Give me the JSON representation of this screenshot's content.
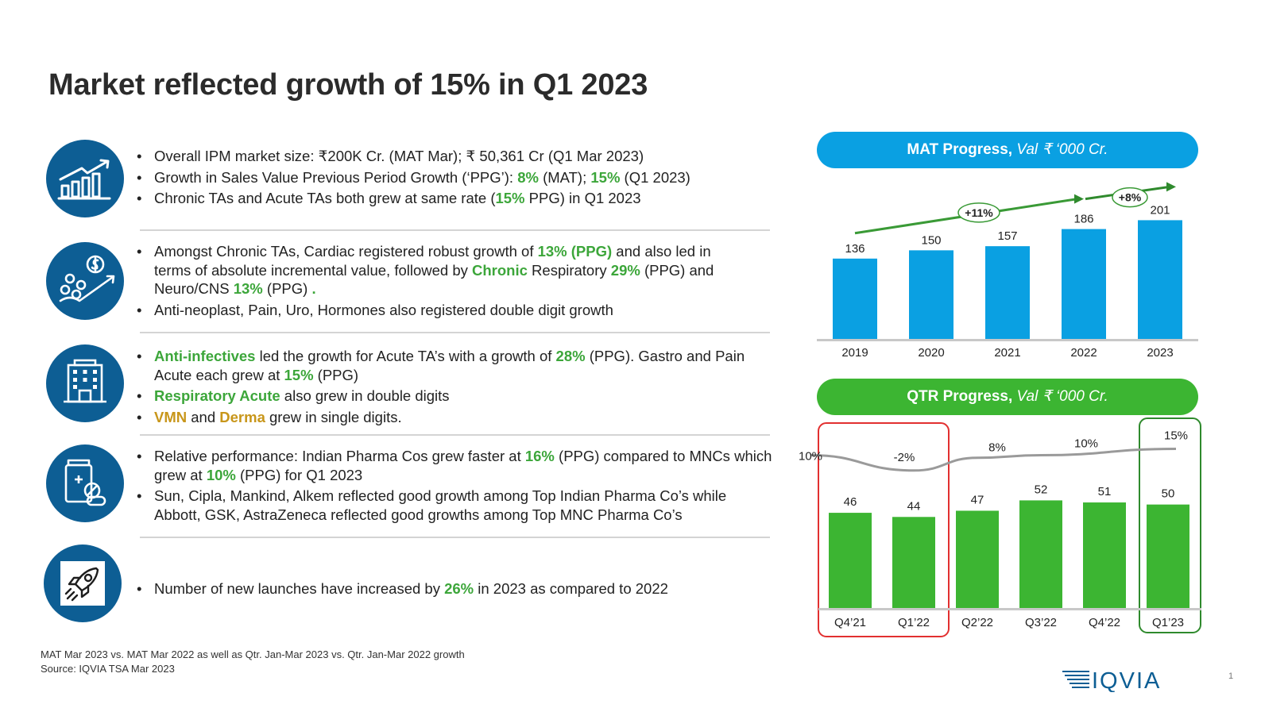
{
  "title": "Market reflected growth of 15% in Q1 2023",
  "sections": [
    {
      "icon": "growth-chart-icon",
      "bullets": [
        [
          {
            "t": "Overall IPM market size: ₹"
          },
          {
            "t": "200K  Cr. ",
            "s": "b"
          },
          {
            "t": "(MAT Mar)",
            "s": "i"
          },
          {
            "t": "; ",
            "s": "b"
          },
          {
            "t": "₹ "
          },
          {
            "t": "50,361 Cr ",
            "s": "b"
          },
          {
            "t": "("
          },
          {
            "t": "Q1 Mar 2023)",
            "s": "i"
          }
        ],
        [
          {
            "t": "Growth in Sales Value Previous Period Growth (‘PPG’): "
          },
          {
            "t": "8%",
            "s": "g"
          },
          {
            "t": " (MAT)",
            "s": "i"
          },
          {
            "t": "; ",
            "s": "b"
          },
          {
            "t": "15%",
            "s": "g"
          },
          {
            "t": " (Q1 2023)",
            "s": "i"
          }
        ],
        [
          {
            "t": "Chronic TAs and Acute TAs both grew at same rate ("
          },
          {
            "t": "15%",
            "s": "g"
          },
          {
            "t": " PPG) in Q1 2023"
          }
        ]
      ]
    },
    {
      "icon": "people-growth-icon",
      "bullets": [
        [
          {
            "t": "Amongst "
          },
          {
            "t": "Chronic TAs, Cardiac",
            "s": "b"
          },
          {
            "t": " registered robust growth of "
          },
          {
            "t": "13% (PPG)",
            "s": "g"
          },
          {
            "t": " and also led in terms of absolute incremental value, followed by "
          },
          {
            "t": "Chronic ",
            "s": "g"
          },
          {
            "t": "Respiratory",
            "s": "b"
          },
          {
            "t": " 29%",
            "s": "g"
          },
          {
            "t": " (PPG) and "
          },
          {
            "t": "Neuro/CNS",
            "s": "b"
          },
          {
            "t": " 13%",
            "s": "g"
          },
          {
            "t": " (PPG) "
          },
          {
            "t": ".",
            "s": "g"
          }
        ],
        [
          {
            "t": "Anti-neoplast, Pain, Uro, Hormones",
            "s": "b"
          },
          {
            "t": " also registered double digit growth"
          }
        ]
      ]
    },
    {
      "icon": "building-icon",
      "bullets": [
        [
          {
            "t": "Anti-infectives",
            "s": "g"
          },
          {
            "t": " led the growth for Acute TA’s with a growth of "
          },
          {
            "t": "28%",
            "s": "g"
          },
          {
            "t": " (PPG).  "
          },
          {
            "t": "Gastro",
            "s": "b"
          },
          {
            "t": " and "
          },
          {
            "t": "Pain Acute",
            "s": "b"
          },
          {
            "t": " each grew at "
          },
          {
            "t": "15%",
            "s": "g"
          },
          {
            "t": " (PPG)"
          }
        ],
        [
          {
            "t": "Respiratory Acute",
            "s": "g"
          },
          {
            "t": " also grew in double digits"
          }
        ],
        [
          {
            "t": "VMN",
            "s": "o"
          },
          {
            "t": " and "
          },
          {
            "t": "Derma",
            "s": "o"
          },
          {
            "t": " grew in single digits."
          }
        ]
      ]
    },
    {
      "icon": "pharma-pills-icon",
      "bullets": [
        [
          {
            "t": "Relative performance: "
          },
          {
            "t": "Indian Pharma",
            "s": "b"
          },
          {
            "t": " Cos grew faster at "
          },
          {
            "t": "16%",
            "s": "g"
          },
          {
            "t": " (PPG) compared to "
          },
          {
            "t": "MNCs",
            "s": "b"
          },
          {
            "t": " which grew at "
          },
          {
            "t": "10%",
            "s": "g"
          },
          {
            "t": " (PPG) for "
          },
          {
            "t": "Q1 2023",
            "s": "b"
          }
        ],
        [
          {
            "t": "Sun, Cipla, Mankind, Alkem reflected good growth among Top Indian Pharma Co’s while Abbott, GSK, AstraZeneca reflected good growths among Top MNC Pharma Co’s"
          }
        ]
      ]
    },
    {
      "icon": "rocket-icon",
      "bullets": [
        [
          {
            "t": "Number of "
          },
          {
            "t": "new launches",
            "s": "b"
          },
          {
            "t": " have increased by "
          },
          {
            "t": "26%",
            "s": "g"
          },
          {
            "t": " in 2023 as compared to 2022"
          }
        ]
      ]
    }
  ],
  "footnote": {
    "line1": "MAT Mar 2023 vs. MAT Mar 2022 as well as Qtr. Jan-Mar 2023 vs. Qtr. Jan-Mar 2022 growth",
    "line2": "Source: IQVIA TSA Mar 2023"
  },
  "mat_header": {
    "bold": "MAT Progress, ",
    "italic": "Val ₹ ‘000 Cr."
  },
  "qtr_header": {
    "bold": "QTR Progress, ",
    "italic": "Val ₹ ‘000 Cr."
  },
  "logo_text": "IQVIA",
  "page_number": "1",
  "chart_data": [
    {
      "type": "bar",
      "title": "MAT Progress, Val ₹ ‘000 Cr.",
      "categories": [
        "2019",
        "2020",
        "2021",
        "2022",
        "2023"
      ],
      "values": [
        136,
        150,
        157,
        186,
        201
      ],
      "ylim": [
        0,
        215
      ],
      "color": "#0aa0e2",
      "annotations": [
        "+11%",
        "+8%"
      ]
    },
    {
      "type": "bar",
      "title": "QTR Progress, Val ₹ ‘000 Cr.",
      "categories": [
        "Q4’21",
        "Q1’22",
        "Q2’22",
        "Q3’22",
        "Q4’22",
        "Q1’23"
      ],
      "values": [
        46,
        44,
        47,
        52,
        51,
        50
      ],
      "ylim": [
        0,
        56
      ],
      "color": "#3cb532",
      "growth_line": {
        "values": [
          10,
          -2,
          8,
          10,
          null,
          15
        ],
        "labels": [
          "10%",
          "-2%",
          "8%",
          "10%",
          "",
          "15%"
        ],
        "ylim": [
          -4,
          24
        ]
      },
      "highlights": [
        "Q4’21-Q1’22 red",
        "Q1’23 green"
      ]
    }
  ]
}
